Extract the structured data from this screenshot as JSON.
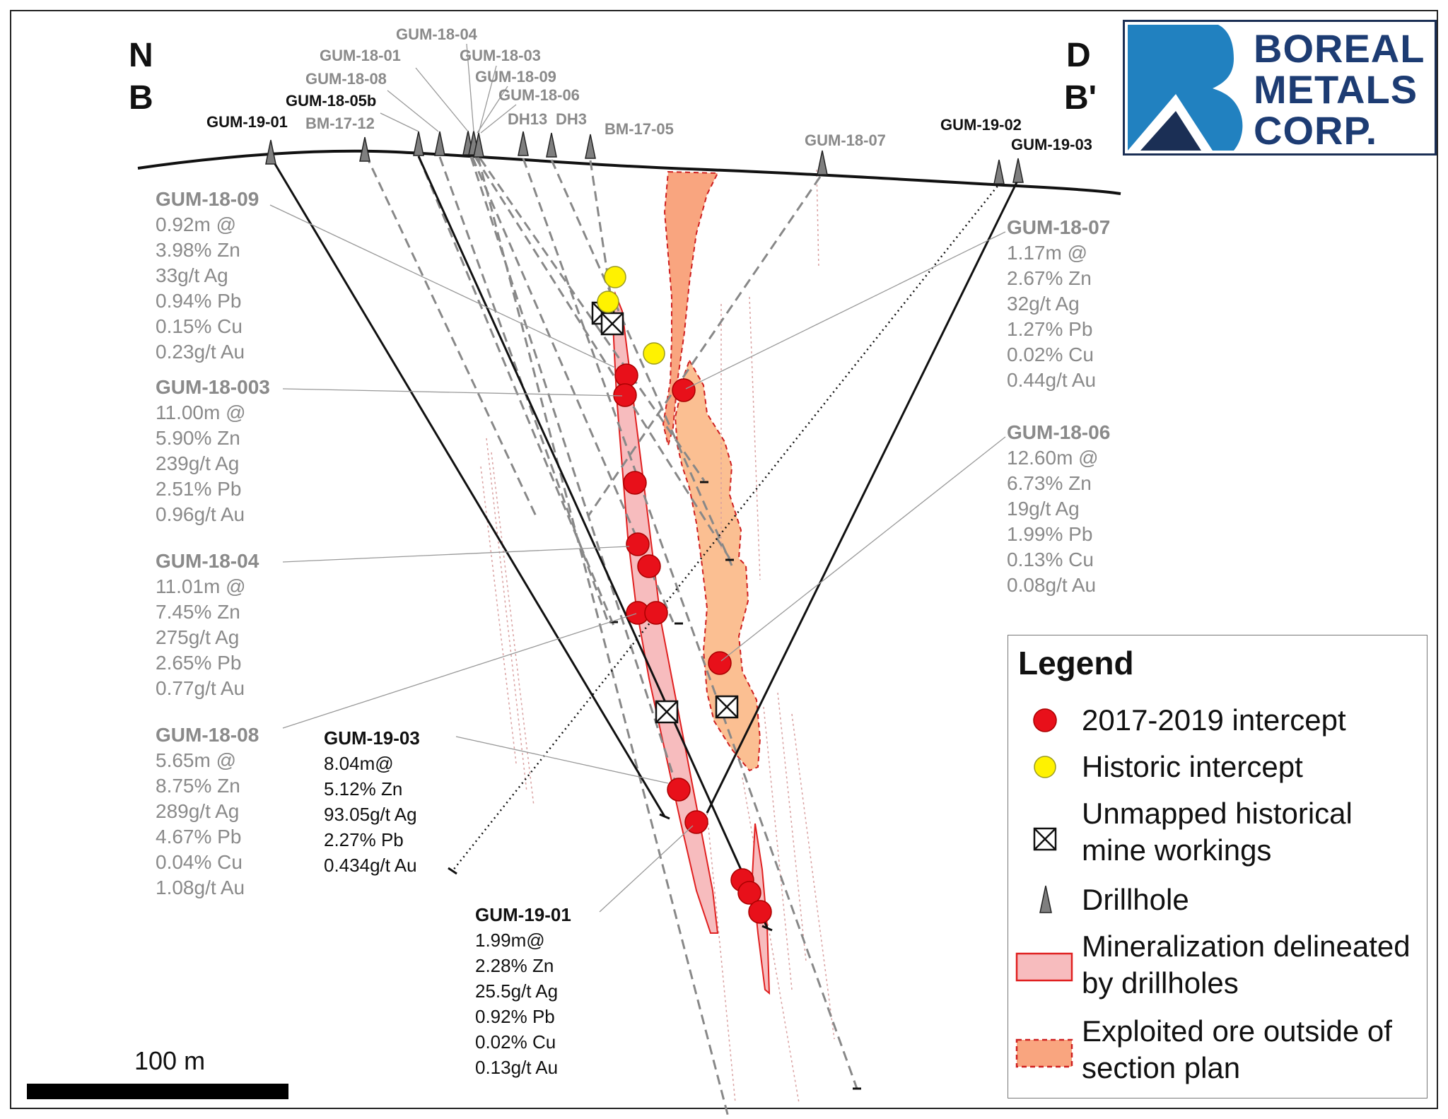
{
  "section": {
    "left_top": "N",
    "left_bottom": "B",
    "right_top": "D",
    "right_bottom": "B'"
  },
  "logo": {
    "line1": "BOREAL",
    "line2": "METALS",
    "line3": "CORP.",
    "colors": {
      "navy": "#1b2f55",
      "blue": "#2181c0"
    }
  },
  "drillholes": {
    "gum_19_01": "GUM-19-01",
    "bm_17_12": "BM-17-12",
    "gum_18_05b": "GUM-18-05b",
    "gum_18_08": "GUM-18-08",
    "gum_18_01": "GUM-18-01",
    "gum_18_04": "GUM-18-04",
    "gum_18_03": "GUM-18-03",
    "gum_18_09": "GUM-18-09",
    "gum_18_06": "GUM-18-06",
    "dh13": "DH13",
    "dh3": "DH3",
    "bm_17_05": "BM-17-05",
    "gum_18_07": "GUM-18-07",
    "gum_19_02": "GUM-19-02",
    "gum_19_03": "GUM-19-03"
  },
  "assays": {
    "gum_18_09": {
      "hole": "GUM-18-09",
      "lines": [
        "0.92m @",
        "3.98% Zn",
        "33g/t Ag",
        "0.94% Pb",
        "0.15% Cu",
        "0.23g/t Au"
      ]
    },
    "gum_18_003": {
      "hole": "GUM-18-003",
      "lines": [
        "11.00m @",
        "5.90% Zn",
        "239g/t Ag",
        "2.51% Pb",
        "0.96g/t Au"
      ]
    },
    "gum_18_04": {
      "hole": "GUM-18-04",
      "lines": [
        "11.01m @",
        "7.45% Zn",
        "275g/t Ag",
        "2.65% Pb",
        "0.77g/t Au"
      ]
    },
    "gum_18_08": {
      "hole": "GUM-18-08",
      "lines": [
        "5.65m @",
        "8.75% Zn",
        "289g/t Ag",
        "4.67% Pb",
        "0.04% Cu",
        "1.08g/t Au"
      ]
    },
    "gum_18_07": {
      "hole": "GUM-18-07",
      "lines": [
        "1.17m @",
        "2.67% Zn",
        "32g/t Ag",
        "1.27% Pb",
        "0.02% Cu",
        "0.44g/t Au"
      ]
    },
    "gum_18_06": {
      "hole": "GUM-18-06",
      "lines": [
        "12.60m @",
        "6.73% Zn",
        "19g/t Ag",
        "1.99% Pb",
        "0.13% Cu",
        "0.08g/t Au"
      ]
    },
    "gum_19_03": {
      "hole": "GUM-19-03",
      "lines": [
        "8.04m@",
        "5.12% Zn",
        "93.05g/t Ag",
        "2.27% Pb",
        "0.434g/t Au"
      ]
    },
    "gum_19_01": {
      "hole": "GUM-19-01",
      "lines": [
        "1.99m@",
        "2.28% Zn",
        "25.5g/t Ag",
        "0.92% Pb",
        "0.02% Cu",
        "0.13g/t Au"
      ]
    }
  },
  "legend": {
    "title": "Legend",
    "items": [
      {
        "label": "2017-2019 intercept",
        "color": "#e8101a"
      },
      {
        "label": "Historic intercept",
        "color": "#fff200"
      },
      {
        "label": "Unmapped historical mine workings"
      },
      {
        "label": "Drillhole",
        "color": "#808080"
      },
      {
        "label": "Mineralization delineated by drillholes",
        "color": "#f7bcbe"
      },
      {
        "label": "Exploited ore outside of section plan",
        "color": "#f9a57f"
      }
    ]
  },
  "scale": {
    "label": "100 m"
  }
}
